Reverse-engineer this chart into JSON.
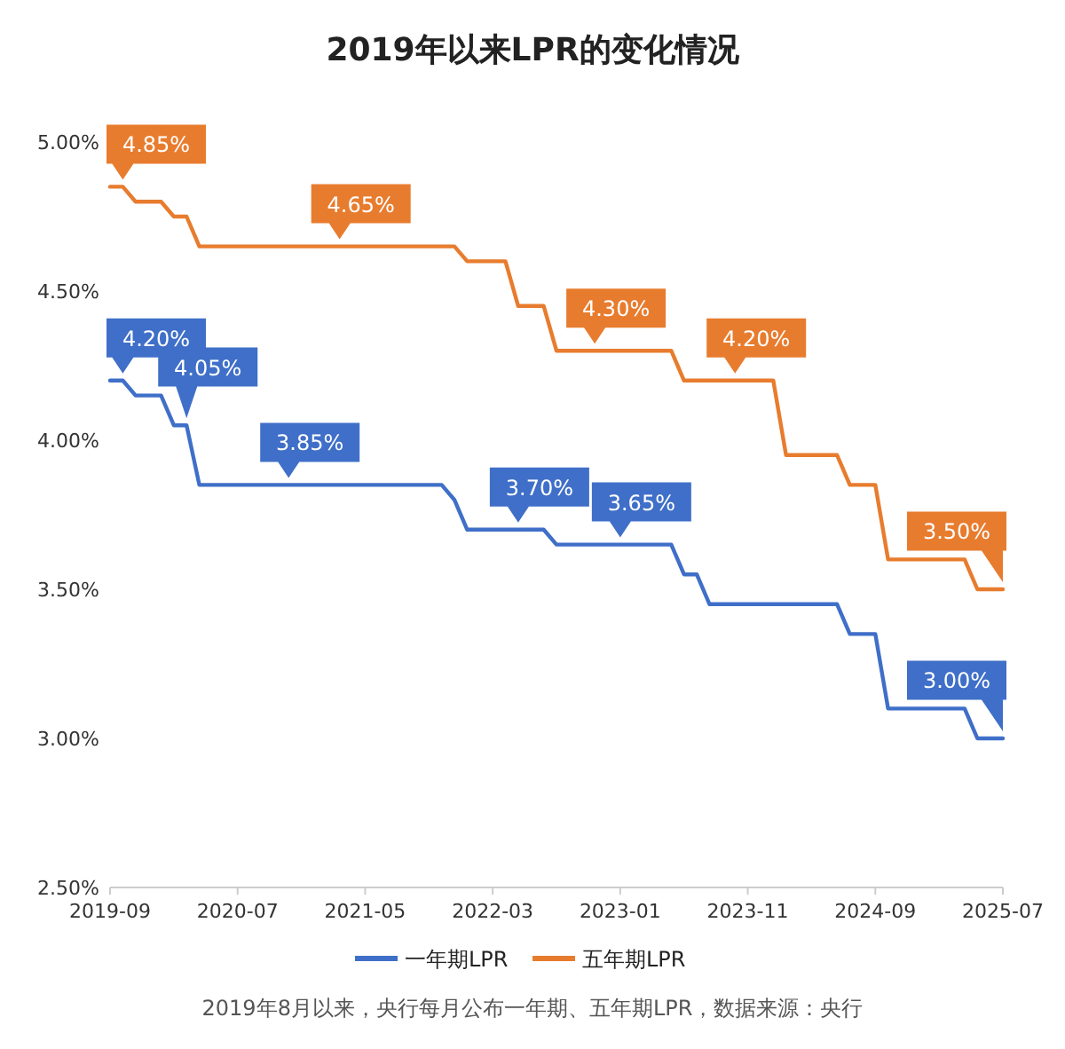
{
  "chart_data": {
    "type": "line",
    "title": "2019年以来LPR的变化情况",
    "xlim": [
      "2019-09",
      "2025-07"
    ],
    "xticks": [
      "2019-09",
      "2020-07",
      "2021-05",
      "2022-03",
      "2023-01",
      "2023-11",
      "2024-09",
      "2025-07"
    ],
    "ylim": [
      2.5,
      5.0
    ],
    "yticks": [
      {
        "value": 2.5,
        "label": "2.50%"
      },
      {
        "value": 3.0,
        "label": "3.00%"
      },
      {
        "value": 3.5,
        "label": "3.50%"
      },
      {
        "value": 4.0,
        "label": "4.00%"
      },
      {
        "value": 4.5,
        "label": "4.50%"
      },
      {
        "value": 5.0,
        "label": "5.00%"
      }
    ],
    "grid": false,
    "legend": "bottom",
    "marker": "none",
    "line_style": "solid",
    "series": [
      {
        "name": "一年期LPR",
        "color": "#3f6fc8",
        "x": [
          "2019-09",
          "2019-10",
          "2019-11",
          "2020-01",
          "2020-02",
          "2020-03",
          "2020-04",
          "2021-11",
          "2021-12",
          "2022-01",
          "2022-07",
          "2022-08",
          "2023-05",
          "2023-06",
          "2023-07",
          "2023-08",
          "2024-06",
          "2024-07",
          "2024-09",
          "2024-10",
          "2025-04",
          "2025-05",
          "2025-07"
        ],
        "values": [
          4.2,
          4.2,
          4.15,
          4.15,
          4.05,
          4.05,
          3.85,
          3.85,
          3.8,
          3.7,
          3.7,
          3.65,
          3.65,
          3.55,
          3.55,
          3.45,
          3.45,
          3.35,
          3.35,
          3.1,
          3.1,
          3.0,
          3.0
        ]
      },
      {
        "name": "五年期LPR",
        "color": "#e87c2e",
        "x": [
          "2019-09",
          "2019-10",
          "2019-11",
          "2020-01",
          "2020-02",
          "2020-03",
          "2020-04",
          "2021-12",
          "2022-01",
          "2022-04",
          "2022-05",
          "2022-07",
          "2022-08",
          "2023-05",
          "2023-06",
          "2024-01",
          "2024-02",
          "2024-06",
          "2024-07",
          "2024-09",
          "2024-10",
          "2025-04",
          "2025-05",
          "2025-07"
        ],
        "values": [
          4.85,
          4.85,
          4.8,
          4.8,
          4.75,
          4.75,
          4.65,
          4.65,
          4.6,
          4.6,
          4.45,
          4.45,
          4.3,
          4.3,
          4.2,
          4.2,
          3.95,
          3.95,
          3.85,
          3.85,
          3.6,
          3.6,
          3.5,
          3.5
        ]
      }
    ],
    "annotations": [
      {
        "text": "4.85%",
        "x": "2019-10",
        "y": 4.85
      },
      {
        "text": "4.65%",
        "x": "2021-03",
        "y": 4.65
      },
      {
        "text": "4.30%",
        "x": "2022-11",
        "y": 4.3
      },
      {
        "text": "4.20%",
        "x": "2023-10",
        "y": 4.2
      },
      {
        "text": "3.50%",
        "x": "2025-07",
        "y": 3.5
      },
      {
        "text": "4.20%",
        "x": "2019-10",
        "y": 4.2
      },
      {
        "text": "4.05%",
        "x": "2020-03",
        "y": 4.05
      },
      {
        "text": "3.85%",
        "x": "2020-11",
        "y": 3.85
      },
      {
        "text": "3.70%",
        "x": "2022-05",
        "y": 3.7
      },
      {
        "text": "3.65%",
        "x": "2023-01",
        "y": 3.65
      },
      {
        "text": "3.00%",
        "x": "2025-07",
        "y": 3.0
      },
      "2019年8月以来，央行每月公布一年期、五年期LPR，数据来源：央行"
    ]
  }
}
